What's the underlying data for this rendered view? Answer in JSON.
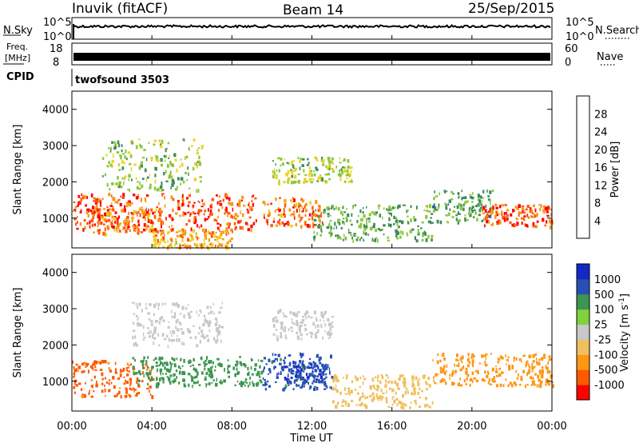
{
  "header": {
    "station": "Inuvik (fitACF)",
    "beam": "Beam 14",
    "date": "25/Sep/2015"
  },
  "strips": {
    "nsky_label": "N.Sky",
    "nsky_ticks": [
      "10^5",
      "10^0"
    ],
    "nsearch_label": "N.Search",
    "nsearch_ticks": [
      "10^5",
      "10^0"
    ],
    "freq_label_1": "Freq.",
    "freq_label_2": "[MHz]",
    "freq_ticks": [
      "18",
      "8"
    ],
    "nave_label": "Nave",
    "nave_ticks": [
      "60",
      "0"
    ],
    "cpid_label": "CPID",
    "cpid_value": "twofsound 3503"
  },
  "colors": {
    "power": [
      "#0000ff",
      "#2d55b4",
      "#3d8a5a",
      "#8cc83c",
      "#f0d21e",
      "#f59a14",
      "#ff5a0a",
      "#ff0000"
    ],
    "velocity": [
      "#ff0000",
      "#ff5a00",
      "#ff9614",
      "#f0c060",
      "#c8c8c8",
      "#7fd23c",
      "#3c9650",
      "#2850b4",
      "#1428c8"
    ]
  },
  "chart_data": [
    {
      "type": "heatmap",
      "panel": "power",
      "ylabel": "Slant Range [km]",
      "y_ticks": [
        "4000",
        "3000",
        "2000",
        "1000"
      ],
      "ylim": [
        180,
        4500
      ],
      "xlim": [
        "00:00",
        "24:00"
      ],
      "colorbar_label": "Power [dB]",
      "colorbar_ticks": [
        "28",
        "24",
        "20",
        "16",
        "12",
        "8",
        "4"
      ],
      "colorbar_range": [
        0,
        32
      ],
      "regions": [
        {
          "t": [
            0.0,
            9.3
          ],
          "r": [
            700,
            1700
          ],
          "value": 27
        },
        {
          "t": [
            1.0,
            4.5
          ],
          "r": [
            600,
            1300
          ],
          "value": 24
        },
        {
          "t": [
            1.5,
            6.5
          ],
          "r": [
            1800,
            3200
          ],
          "value": 14
        },
        {
          "t": [
            4.0,
            8.0
          ],
          "r": [
            200,
            700
          ],
          "value": 21
        },
        {
          "t": [
            9.5,
            12.5
          ],
          "r": [
            800,
            1600
          ],
          "value": 25
        },
        {
          "t": [
            10.0,
            14.0
          ],
          "r": [
            2000,
            2700
          ],
          "value": 15
        },
        {
          "t": [
            12.0,
            18.0
          ],
          "r": [
            400,
            1400
          ],
          "value": 12
        },
        {
          "t": [
            18.0,
            21.0
          ],
          "r": [
            900,
            1800
          ],
          "value": 11
        },
        {
          "t": [
            20.5,
            24.0
          ],
          "r": [
            800,
            1400
          ],
          "value": 26
        }
      ]
    },
    {
      "type": "heatmap",
      "panel": "velocity",
      "ylabel": "Slant Range [km]",
      "y_ticks": [
        "4000",
        "3000",
        "2000",
        "1000"
      ],
      "ylim": [
        180,
        4500
      ],
      "xlim": [
        "00:00",
        "24:00"
      ],
      "colorbar_label": "Velocity [m s",
      "colorbar_label_sup": "-1",
      "colorbar_label_end": "]",
      "colorbar_ticks": [
        "1000",
        "500",
        "100",
        "25",
        "-25",
        "-100",
        "-500",
        "-1000"
      ],
      "regions": [
        {
          "t": [
            0.0,
            4.0
          ],
          "r": [
            600,
            1600
          ],
          "value": -600
        },
        {
          "t": [
            3.0,
            9.5
          ],
          "r": [
            900,
            1700
          ],
          "value": 150
        },
        {
          "t": [
            3.0,
            7.5
          ],
          "r": [
            2000,
            3200
          ],
          "value": 0
        },
        {
          "t": [
            9.5,
            13.0
          ],
          "r": [
            800,
            1800
          ],
          "value": 600
        },
        {
          "t": [
            10.5,
            12.5
          ],
          "r": [
            1000,
            1600
          ],
          "value": 1000
        },
        {
          "t": [
            10.0,
            13.0
          ],
          "r": [
            2200,
            3000
          ],
          "value": 0
        },
        {
          "t": [
            13.0,
            18.0
          ],
          "r": [
            300,
            1200
          ],
          "value": -50
        },
        {
          "t": [
            18.0,
            24.0
          ],
          "r": [
            900,
            1800
          ],
          "value": -300
        }
      ]
    }
  ],
  "xaxis": {
    "ticks": [
      "00:00",
      "04:00",
      "08:00",
      "12:00",
      "16:00",
      "20:00",
      "00:00"
    ],
    "label": "Time UT"
  }
}
